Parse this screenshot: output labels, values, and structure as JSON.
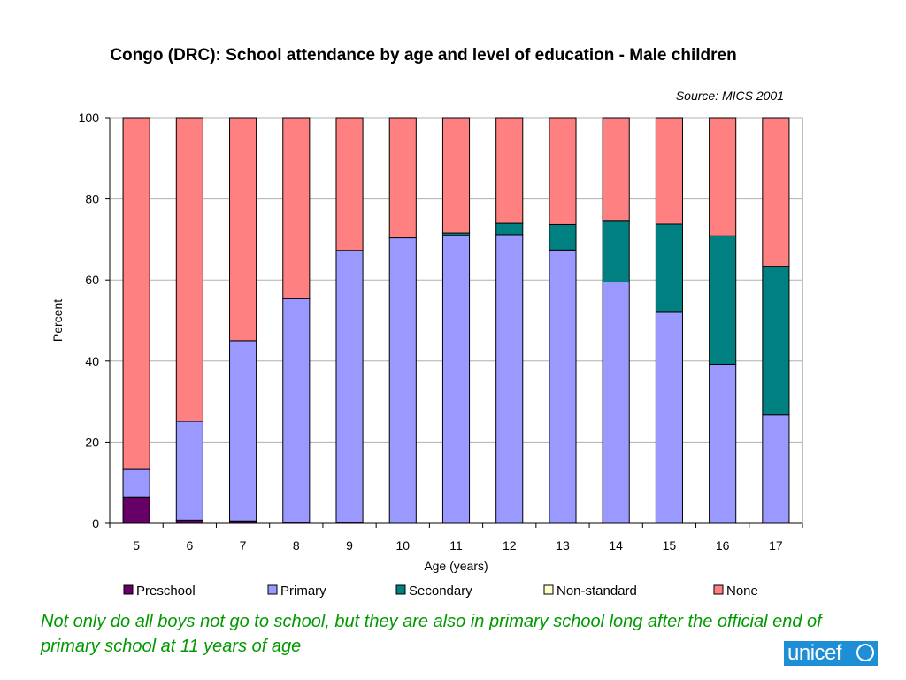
{
  "chart_data": {
    "type": "bar",
    "stacked": true,
    "title": "Congo (DRC): School attendance by age and level of education - Male children",
    "source_note": "Source: MICS 2001",
    "xlabel": "Age (years)",
    "ylabel": "Percent",
    "ylim": [
      0,
      100
    ],
    "yticks": [
      0,
      20,
      40,
      60,
      80,
      100
    ],
    "grid": true,
    "legend_position": "bottom",
    "categories": [
      "5",
      "6",
      "7",
      "8",
      "9",
      "10",
      "11",
      "12",
      "13",
      "14",
      "15",
      "16",
      "17"
    ],
    "series": [
      {
        "name": "Preschool",
        "color": "#660066",
        "values": [
          6.5,
          0.8,
          0.6,
          0.3,
          0.3,
          0,
          0,
          0,
          0,
          0,
          0,
          0,
          0
        ]
      },
      {
        "name": "Primary",
        "color": "#9999ff",
        "values": [
          6.8,
          24.3,
          44.4,
          55.1,
          67.0,
          70.4,
          71.0,
          71.2,
          67.4,
          59.5,
          52.2,
          39.2,
          26.7
        ]
      },
      {
        "name": "Secondary",
        "color": "#008080",
        "values": [
          0,
          0,
          0,
          0,
          0,
          0,
          0.6,
          2.8,
          6.3,
          15.0,
          21.6,
          31.7,
          36.7
        ]
      },
      {
        "name": "Non-standard",
        "color": "#ffffcc",
        "values": [
          0,
          0,
          0,
          0,
          0,
          0,
          0,
          0,
          0,
          0,
          0,
          0,
          0
        ]
      },
      {
        "name": "None",
        "color": "#ff8080",
        "values": [
          86.7,
          74.9,
          55.0,
          44.6,
          32.7,
          29.6,
          28.4,
          26.0,
          26.3,
          25.5,
          26.2,
          29.1,
          36.6
        ]
      }
    ]
  },
  "caption": "Not only do all boys not go to school, but they are also in primary school long after the official end of primary school at 11 years of age",
  "logo_text": "unicef"
}
